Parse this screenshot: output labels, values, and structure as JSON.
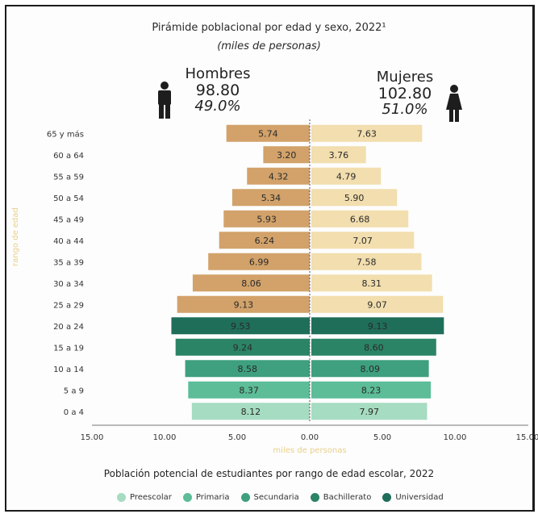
{
  "chart_data": {
    "type": "bar",
    "title": "Pirámide poblacional por edad y sexo, 2022¹",
    "subtitle": "(miles de personas)",
    "xlabel": "miles de personas",
    "ylabel": "rango de edad",
    "xlim": [
      -15,
      15
    ],
    "x_ticks": [
      "15.00",
      "10.00",
      "5.00",
      "0.00",
      "5.00",
      "10.00",
      "15.00"
    ],
    "categories": [
      "65 y más",
      "60 a 64",
      "55 a 59",
      "50 a 54",
      "45 a 49",
      "40 a 44",
      "35 a 39",
      "30 a 34",
      "25 a 29",
      "20 a 24",
      "15 a 19",
      "10 a 14",
      "5 a 9",
      "0 a 4"
    ],
    "series": [
      {
        "name": "Hombres",
        "values": [
          5.74,
          3.2,
          4.32,
          5.34,
          5.93,
          6.24,
          6.99,
          8.06,
          9.13,
          9.53,
          9.24,
          8.58,
          8.37,
          8.12
        ]
      },
      {
        "name": "Mujeres",
        "values": [
          7.63,
          3.76,
          4.79,
          5.9,
          6.68,
          7.07,
          7.58,
          8.31,
          9.07,
          9.13,
          8.6,
          8.09,
          8.23,
          7.97
        ]
      }
    ],
    "row_groups": [
      "none",
      "none",
      "none",
      "none",
      "none",
      "none",
      "none",
      "none",
      "none",
      "Universidad",
      "Bachillerato",
      "Secundaria",
      "Primaria",
      "Preescolar"
    ],
    "group_colors": {
      "none": {
        "left": "#d2a26a",
        "right": "#f2deae"
      },
      "Universidad": {
        "left": "#1f6e5a",
        "right": "#1f6e5a"
      },
      "Bachillerato": {
        "left": "#2b8466",
        "right": "#2b8466"
      },
      "Secundaria": {
        "left": "#3ea07f",
        "right": "#3ea07f"
      },
      "Primaria": {
        "left": "#5cbd98",
        "right": "#5cbd98"
      },
      "Preescolar": {
        "left": "#a6dcc1",
        "right": "#a6dcc1"
      }
    },
    "grid": false
  },
  "summary": {
    "men": {
      "label": "Hombres",
      "total": "98.80",
      "pct": "49.0%"
    },
    "women": {
      "label": "Mujeres",
      "total": "102.80",
      "pct": "51.0%"
    }
  },
  "legend": {
    "title": "Población potencial de estudiantes por rango de edad escolar, 2022",
    "items": [
      {
        "label": "Preescolar",
        "color": "#a6dcc1"
      },
      {
        "label": "Primaria",
        "color": "#5cbd98"
      },
      {
        "label": "Secundaria",
        "color": "#3ea07f"
      },
      {
        "label": "Bachillerato",
        "color": "#2b8466"
      },
      {
        "label": "Universidad",
        "color": "#1f6e5a"
      }
    ]
  },
  "icons": {
    "men": "man-icon",
    "women": "woman-icon"
  }
}
